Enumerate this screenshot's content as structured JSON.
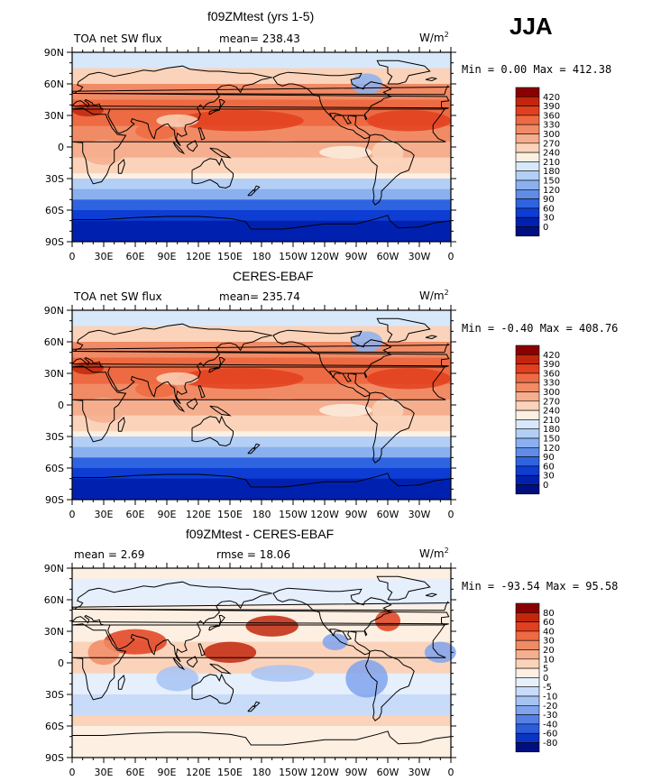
{
  "season": "JJA",
  "units_label": "W/m",
  "units_sup": "2",
  "panels": [
    {
      "title": "f09ZMtest (yrs 1-5)",
      "left_label": "TOA net SW flux",
      "center_label": "mean= 238.43",
      "minmax": "Min =   0.00 Max = 412.38",
      "colorbar": [
        "420",
        "390",
        "360",
        "330",
        "300",
        "270",
        "240",
        "210",
        "180",
        "150",
        "120",
        "90",
        "60",
        "30",
        "0"
      ],
      "colors": [
        "#8b0000",
        "#c1270d",
        "#e23f1f",
        "#ee6a42",
        "#f18b65",
        "#f5ae8e",
        "#fad3ba",
        "#fbf0e2",
        "#d8e8fb",
        "#b3cff6",
        "#8bb0ef",
        "#5f8ce8",
        "#2f64e0",
        "#0d3dd3",
        "#0021b0",
        "#000f80"
      ]
    },
    {
      "title": "CERES-EBAF",
      "left_label": "TOA net SW flux",
      "center_label": "mean= 235.74",
      "minmax": "Min =  -0.40 Max = 408.76",
      "colorbar": [
        "420",
        "390",
        "360",
        "330",
        "300",
        "270",
        "240",
        "210",
        "180",
        "150",
        "120",
        "90",
        "60",
        "30",
        "0"
      ],
      "colors": [
        "#8b0000",
        "#c1270d",
        "#e23f1f",
        "#ee6a42",
        "#f18b65",
        "#f5ae8e",
        "#fad3ba",
        "#fbf0e2",
        "#d8e8fb",
        "#b3cff6",
        "#8bb0ef",
        "#5f8ce8",
        "#2f64e0",
        "#0d3dd3",
        "#0021b0",
        "#000f80"
      ]
    },
    {
      "title": "f09ZMtest - CERES-EBAF",
      "left_label": "mean =    2.69",
      "center_label": "rmse =   18.06",
      "minmax": "Min = -93.54 Max =  95.58",
      "colorbar": [
        "80",
        "60",
        "40",
        "30",
        "20",
        "10",
        "5",
        "0",
        "-5",
        "-10",
        "-20",
        "-30",
        "-40",
        "-60",
        "-80"
      ],
      "colors": [
        "#8b0000",
        "#c1270d",
        "#e23f1f",
        "#ee6a42",
        "#f18b65",
        "#f5ae8e",
        "#fad3ba",
        "#fdefe2",
        "#e6effc",
        "#c8dbf8",
        "#a7c3f3",
        "#7fa3ed",
        "#5480e6",
        "#2c5ddc",
        "#0b34c6",
        "#000f80"
      ]
    }
  ],
  "lat_labels": [
    "90N",
    "60N",
    "30N",
    "0",
    "30S",
    "60S",
    "90S"
  ],
  "lon_labels": [
    "0",
    "30E",
    "60E",
    "90E",
    "120E",
    "150E",
    "180",
    "150W",
    "120W",
    "90W",
    "60W",
    "30W",
    "0"
  ]
}
